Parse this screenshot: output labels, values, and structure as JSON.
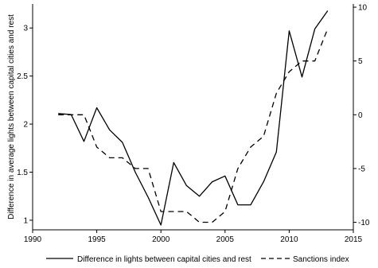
{
  "chart_data": {
    "type": "line",
    "title": "",
    "xlabel": "",
    "ylabel": "Difference in average lights between capital cities and rest",
    "y2label": "",
    "xlim": [
      1990,
      2015
    ],
    "ylim": [
      0.9,
      3.25
    ],
    "y2lim": [
      -10.7,
      10.3
    ],
    "x_ticks": [
      1990,
      1995,
      2000,
      2005,
      2010,
      2015
    ],
    "y_ticks": [
      1,
      1.5,
      2,
      2.5,
      3
    ],
    "y2_ticks": [
      10,
      5,
      0,
      -5,
      -10
    ],
    "grid": false,
    "legend_position": "bottom",
    "series": [
      {
        "name": "Difference in lights between capital cities and rest",
        "axis": "left",
        "dash": "solid",
        "color": "#000000",
        "x": [
          1992,
          1993,
          1994,
          1995,
          1996,
          1997,
          1998,
          1999,
          2000,
          2001,
          2002,
          2003,
          2004,
          2005,
          2006,
          2007,
          2008,
          2009,
          2010,
          2011,
          2012,
          2013
        ],
        "values": [
          2.11,
          2.1,
          1.82,
          2.17,
          1.94,
          1.81,
          1.5,
          1.24,
          0.95,
          1.6,
          1.36,
          1.25,
          1.4,
          1.46,
          1.16,
          1.16,
          1.4,
          1.71,
          2.97,
          2.49,
          2.99,
          3.18
        ]
      },
      {
        "name": "Sanctions index",
        "axis": "right",
        "dash": "dashed",
        "color": "#000000",
        "x": [
          1992,
          1993,
          1994,
          1995,
          1996,
          1997,
          1998,
          1999,
          2000,
          2001,
          2002,
          2003,
          2004,
          2005,
          2006,
          2007,
          2008,
          2009,
          2010,
          2011,
          2012,
          2013
        ],
        "values": [
          0,
          0,
          0,
          -3,
          -4,
          -4,
          -5,
          -5,
          -9,
          -9,
          -9,
          -10,
          -10,
          -9,
          -5,
          -3,
          -2,
          2,
          4,
          5,
          5,
          8
        ]
      }
    ]
  }
}
